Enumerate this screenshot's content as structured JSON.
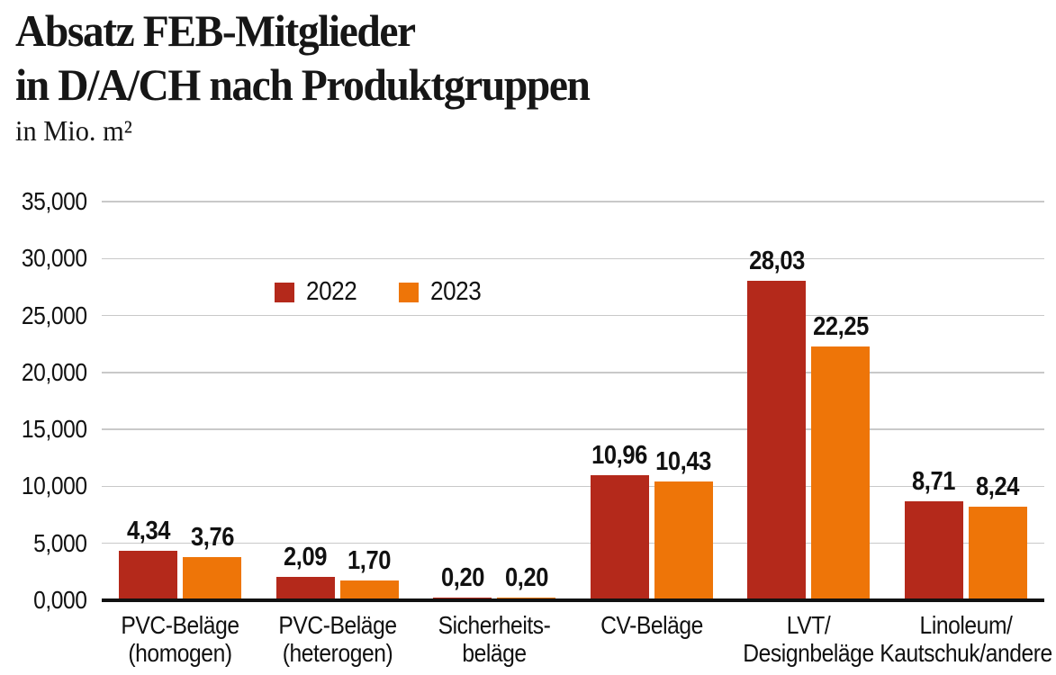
{
  "figure": {
    "title_line1": "Absatz FEB-Mitglieder",
    "title_line2": "in D/A/CH nach Produktgruppen",
    "subtitle": "in Mio. m²"
  },
  "colors": {
    "series_2022": "#B4291B",
    "series_2023": "#EE7508",
    "gridline": "#C9C9C9",
    "axis": "#111111",
    "text": "#161616"
  },
  "chart_data": {
    "type": "bar",
    "title": "Absatz FEB-Mitglieder in D/A/CH nach Produktgruppen",
    "unit_label": "in Mio. m²",
    "categories": [
      {
        "lines": [
          "PVC-Beläge",
          "(homogen)"
        ]
      },
      {
        "lines": [
          "PVC-Beläge",
          "(heterogen)"
        ]
      },
      {
        "lines": [
          "Sicherheits-",
          "beläge"
        ]
      },
      {
        "lines": [
          "CV-Beläge"
        ]
      },
      {
        "lines": [
          "LVT/",
          "Designbeläge"
        ]
      },
      {
        "lines": [
          "Linoleum/",
          "Kautschuk/andere"
        ]
      }
    ],
    "series": [
      {
        "name": "2022",
        "color": "#B4291B",
        "values": [
          4.34,
          2.09,
          0.2,
          10.96,
          28.03,
          8.71
        ],
        "value_labels": [
          "4,34",
          "2,09",
          "0,20",
          "10,96",
          "28,03",
          "8,71"
        ]
      },
      {
        "name": "2023",
        "color": "#EE7508",
        "values": [
          3.76,
          1.7,
          0.2,
          10.43,
          22.25,
          8.24
        ],
        "value_labels": [
          "3,76",
          "1,70",
          "0,20",
          "10,43",
          "22,25",
          "8,24"
        ]
      }
    ],
    "ylim": [
      0,
      35
    ],
    "ytick_step": 5,
    "ytick_labels": [
      "0,000",
      "5,000",
      "10,000",
      "15,000",
      "20,000",
      "25,000",
      "30,000",
      "35,000"
    ],
    "grid": true,
    "legend_position": "upper-left-inside"
  }
}
